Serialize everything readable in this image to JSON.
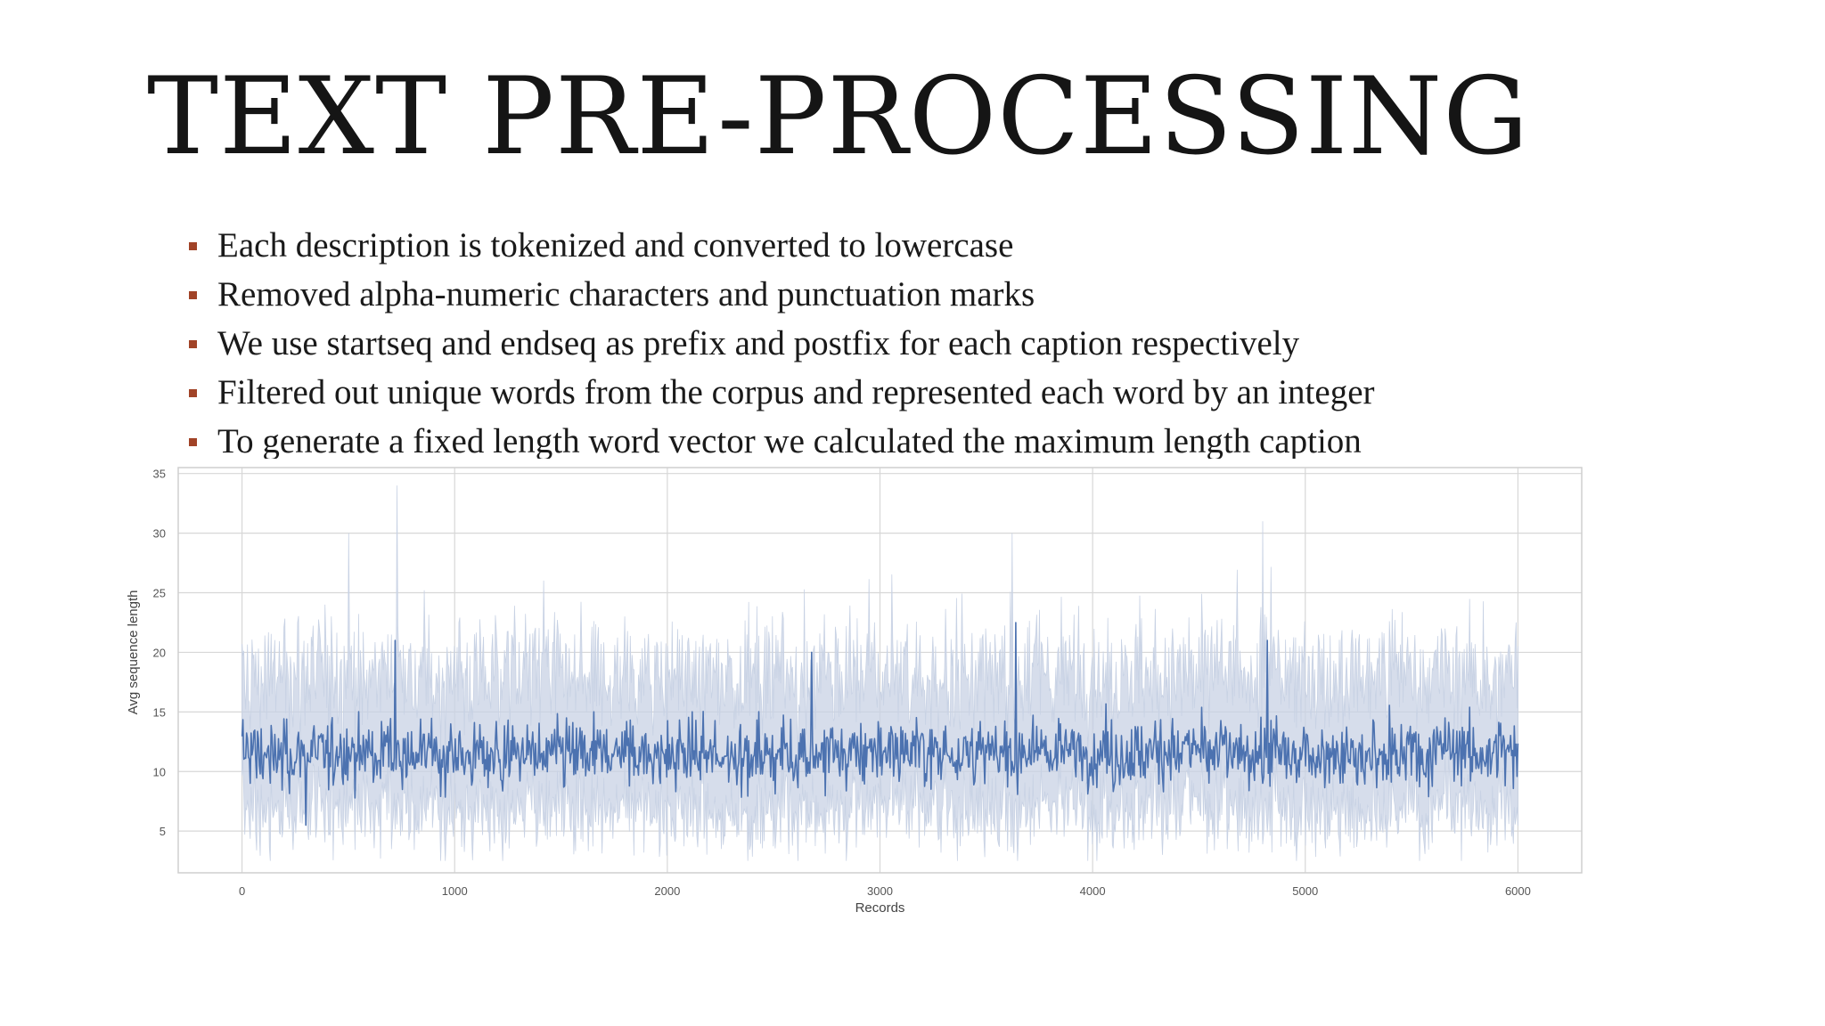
{
  "slide": {
    "title": "TEXT PRE-PROCESSING",
    "accent_color": "#a14327",
    "bullets": [
      "Each description is tokenized and converted to lowercase",
      "Removed alpha-numeric characters and punctuation marks",
      "We use startseq and endseq as prefix and postfix for each caption respectively",
      "Filtered out unique words from the corpus and represented each word by an integer",
      "To generate a fixed length word vector we calculated the maximum length caption"
    ]
  },
  "chart_data": {
    "type": "line",
    "xlabel": "Records",
    "ylabel": "Avg sequence length",
    "xlim": [
      -300,
      6300
    ],
    "ylim": [
      1.5,
      35.5
    ],
    "x_ticks": [
      0,
      1000,
      2000,
      3000,
      4000,
      5000,
      6000
    ],
    "y_ticks": [
      5,
      10,
      15,
      20,
      25,
      30,
      35
    ],
    "x_tick_labels": [
      "0",
      "1000",
      "2000",
      "3000",
      "4000",
      "5000",
      "6000"
    ],
    "y_tick_labels": [
      "5",
      "10",
      "15",
      "20",
      "25",
      "30",
      "35"
    ],
    "grid": true,
    "x_range": [
      0,
      6000
    ],
    "mean_line": {
      "color": "#4c72b0",
      "typical_range": [
        8,
        16
      ],
      "center": 11.5,
      "min": 5.5,
      "max": 22.5,
      "spikes": [
        {
          "x": 720,
          "y": 21
        },
        {
          "x": 3640,
          "y": 22.5
        },
        {
          "x": 4820,
          "y": 21
        },
        {
          "x": 2680,
          "y": 20
        },
        {
          "x": 300,
          "y": 5.5
        }
      ]
    },
    "confidence_band": {
      "color": "#c8d2e4",
      "typical_range": [
        5,
        20
      ],
      "min": 2.5,
      "max": 34,
      "spikes": [
        {
          "x": 730,
          "y": 34
        },
        {
          "x": 4800,
          "y": 31
        },
        {
          "x": 3620,
          "y": 30
        },
        {
          "x": 500,
          "y": 30
        }
      ]
    }
  }
}
